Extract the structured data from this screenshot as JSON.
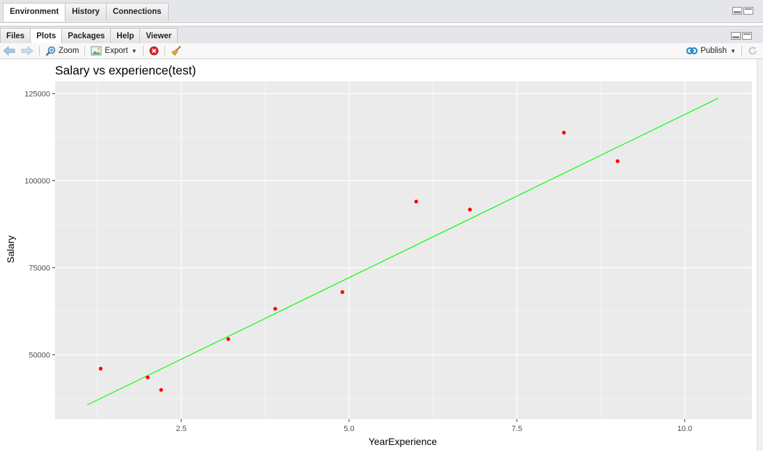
{
  "top_tabs": [
    "Environment",
    "History",
    "Connections"
  ],
  "bottom_tabs": [
    "Files",
    "Plots",
    "Packages",
    "Help",
    "Viewer"
  ],
  "active_bottom_tab": "Plots",
  "toolbar": {
    "zoom_label": "Zoom",
    "export_label": "Export",
    "publish_label": "Publish"
  },
  "icons": {
    "back": "arrow-left-icon",
    "forward": "arrow-right-icon",
    "zoom": "magnifier-icon",
    "export": "image-export-icon",
    "remove": "close-circle-icon",
    "clear": "broom-icon",
    "publish": "rsconnect-publish-icon",
    "refresh": "refresh-icon"
  },
  "colors": {
    "panel_bg": "#ebebeb",
    "point": "#ff0000",
    "line": "#00ff00",
    "grid": "#ffffff",
    "publish_icon": "#2a8ac9"
  },
  "chart_data": {
    "type": "scatter",
    "title": "Salary vs experience(test)",
    "xlabel": "YearExperience",
    "ylabel": "Salary",
    "xlim": [
      0.62,
      11.0
    ],
    "ylim": [
      31500,
      128500
    ],
    "xticks": [
      2.5,
      5.0,
      7.5,
      10.0
    ],
    "xtick_labels": [
      "2.5",
      "5.0",
      "7.5",
      "10.0"
    ],
    "yticks": [
      50000,
      75000,
      100000,
      125000
    ],
    "ytick_labels": [
      "50000",
      "75000",
      "100000",
      "125000"
    ],
    "grid": true,
    "legend": "none",
    "points": {
      "x": [
        1.3,
        2.0,
        2.2,
        3.2,
        3.9,
        4.9,
        6.0,
        6.8,
        8.2,
        9.0
      ],
      "y": [
        46000,
        43500,
        39900,
        54500,
        63200,
        68000,
        94000,
        91700,
        113800,
        105600
      ]
    },
    "fit_line": {
      "x": [
        1.1,
        10.5
      ],
      "y": [
        35600,
        123700
      ]
    }
  }
}
